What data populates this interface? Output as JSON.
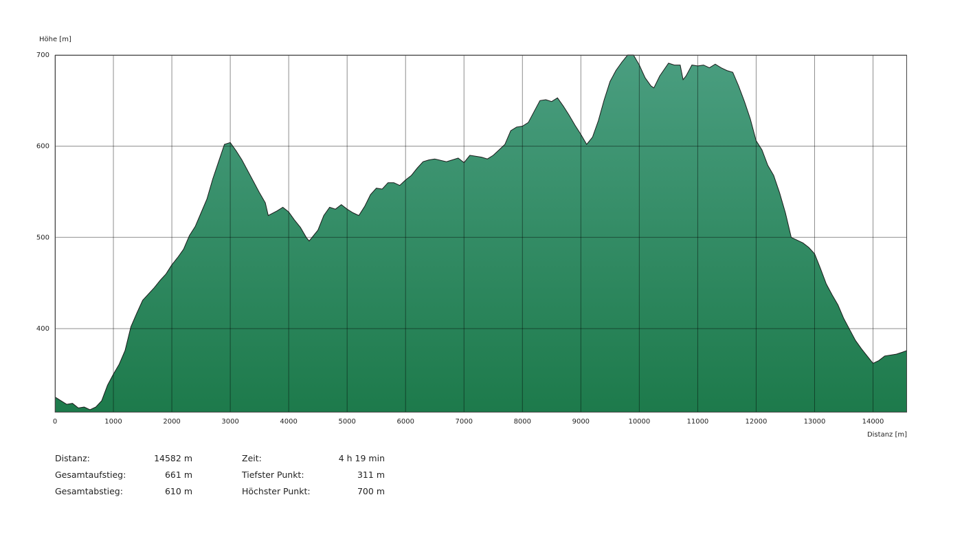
{
  "chart_data": {
    "type": "area",
    "ylabel": "Höhe [m]",
    "xlabel": "Distanz [m]",
    "xlim": [
      0,
      14582
    ],
    "ylim": [
      308,
      700
    ],
    "xticks": [
      0,
      1000,
      2000,
      3000,
      4000,
      5000,
      6000,
      7000,
      8000,
      9000,
      10000,
      11000,
      12000,
      13000,
      14000
    ],
    "yticks": [
      400,
      500,
      600,
      700
    ],
    "grid": true,
    "fill_top_color": "#4a9e80",
    "fill_bottom_color": "#1d7a4b",
    "line_color": "#1a1a1a",
    "x": [
      0,
      200,
      300,
      400,
      500,
      600,
      700,
      800,
      900,
      1000,
      1100,
      1200,
      1300,
      1400,
      1500,
      1700,
      1800,
      1900,
      2000,
      2100,
      2200,
      2300,
      2400,
      2500,
      2600,
      2700,
      2800,
      2900,
      3000,
      3100,
      3200,
      3300,
      3400,
      3500,
      3600,
      3650,
      3800,
      3900,
      4000,
      4100,
      4200,
      4300,
      4350,
      4500,
      4600,
      4700,
      4800,
      4900,
      5000,
      5100,
      5200,
      5300,
      5400,
      5500,
      5600,
      5700,
      5800,
      5900,
      6000,
      6100,
      6200,
      6300,
      6400,
      6500,
      6700,
      6800,
      6900,
      7000,
      7100,
      7300,
      7400,
      7500,
      7600,
      7700,
      7800,
      7900,
      8000,
      8100,
      8200,
      8300,
      8400,
      8500,
      8600,
      8700,
      8800,
      8900,
      9000,
      9100,
      9200,
      9300,
      9400,
      9500,
      9600,
      9700,
      9800,
      9900,
      10000,
      10100,
      10200,
      10250,
      10350,
      10500,
      10600,
      10700,
      10750,
      10800,
      10900,
      11000,
      11100,
      11200,
      11300,
      11400,
      11500,
      11600,
      11700,
      11800,
      11900,
      12000,
      12100,
      12200,
      12300,
      12400,
      12500,
      12600,
      12700,
      12800,
      12900,
      13000,
      13100,
      13200,
      13300,
      13400,
      13500,
      13600,
      13700,
      13800,
      13900,
      14000,
      14100,
      14200,
      14400,
      14500,
      14582
    ],
    "values": [
      325,
      317,
      318,
      313,
      314,
      311,
      314,
      321,
      338,
      350,
      361,
      376,
      402,
      417,
      431,
      445,
      453,
      460,
      470,
      478,
      487,
      502,
      512,
      527,
      542,
      564,
      583,
      602,
      604,
      595,
      585,
      573,
      561,
      549,
      538,
      524,
      529,
      533,
      528,
      519,
      511,
      500,
      496,
      508,
      524,
      533,
      531,
      536,
      531,
      527,
      524,
      534,
      547,
      554,
      553,
      560,
      560,
      557,
      563,
      568,
      576,
      583,
      585,
      586,
      583,
      585,
      587,
      582,
      590,
      588,
      586,
      590,
      596,
      602,
      617,
      621,
      622,
      626,
      638,
      650,
      651,
      649,
      653,
      644,
      634,
      623,
      613,
      602,
      610,
      628,
      651,
      671,
      683,
      692,
      700,
      700,
      689,
      675,
      666,
      664,
      677,
      691,
      689,
      689,
      673,
      677,
      689,
      688,
      689,
      686,
      690,
      686,
      683,
      681,
      666,
      649,
      630,
      606,
      596,
      579,
      568,
      549,
      527,
      500,
      497,
      494,
      489,
      482,
      466,
      449,
      437,
      426,
      411,
      399,
      387,
      378,
      370,
      362,
      365,
      370,
      372,
      374,
      376
    ]
  },
  "stats": {
    "rows": [
      [
        {
          "label": "Distanz:",
          "value": "14582 m"
        },
        {
          "label": "Zeit:",
          "value": "4 h 19 min"
        }
      ],
      [
        {
          "label": "Gesamtaufstieg:",
          "value": "661 m"
        },
        {
          "label": "Tiefster Punkt:",
          "value": "311 m"
        }
      ],
      [
        {
          "label": "Gesamtabstieg:",
          "value": "610 m"
        },
        {
          "label": "Höchster Punkt:",
          "value": "700 m"
        }
      ]
    ]
  }
}
